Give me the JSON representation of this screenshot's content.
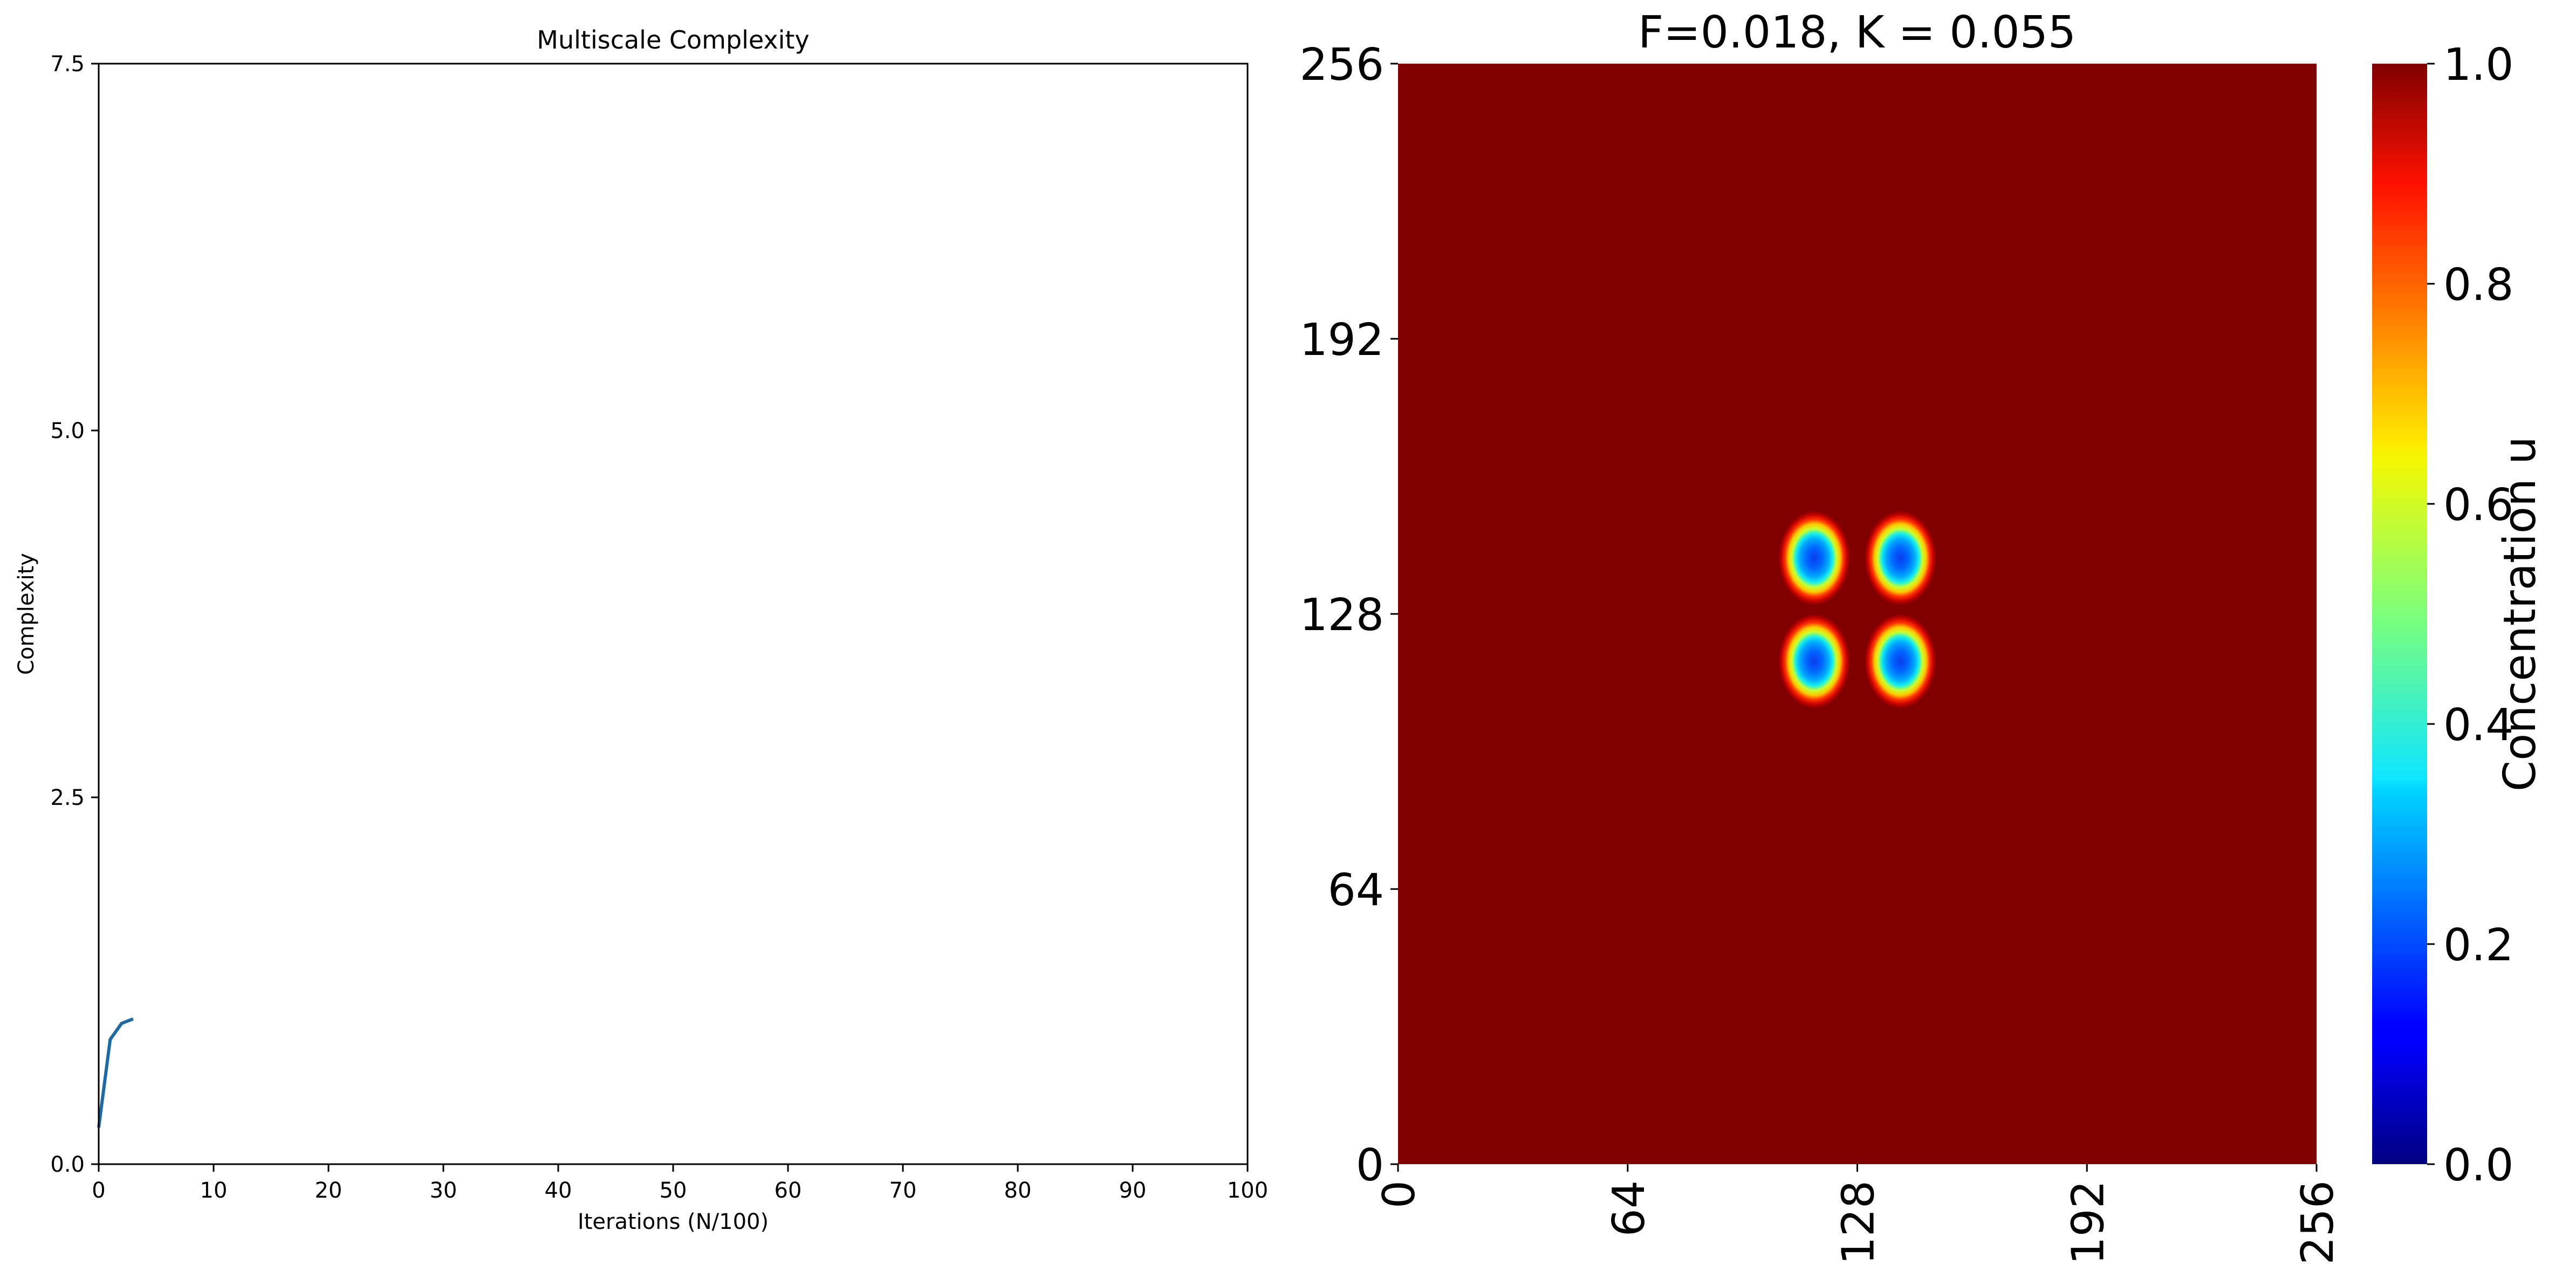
{
  "chart_data": [
    {
      "type": "line",
      "title": "Multiscale Complexity",
      "xlabel": "Iterations (N/100)",
      "ylabel": "Complexity",
      "xlim": [
        0,
        100
      ],
      "ylim": [
        0,
        7.5
      ],
      "xticks": [
        0,
        10,
        20,
        30,
        40,
        50,
        60,
        70,
        80,
        90,
        100
      ],
      "xtick_labels": [
        "0",
        "10",
        "20",
        "30",
        "40",
        "50",
        "60",
        "70",
        "80",
        "90",
        "100"
      ],
      "yticks": [
        0,
        2.5,
        5.0,
        7.5
      ],
      "ytick_labels": [
        "0.0",
        "2.5",
        "5.0",
        "7.5"
      ],
      "grid": false,
      "series": [
        {
          "color": "#1f6aa5",
          "x": [
            0,
            1,
            2,
            3
          ],
          "y": [
            0.25,
            0.85,
            0.96,
            0.99
          ]
        }
      ]
    },
    {
      "type": "heatmap",
      "title": "F=0.018, K = 0.055",
      "xlim": [
        0,
        256
      ],
      "ylim": [
        0,
        256
      ],
      "xticks": [
        0,
        64,
        128,
        192,
        256
      ],
      "xtick_labels": [
        "0",
        "64",
        "128",
        "192",
        "256"
      ],
      "yticks": [
        0,
        64,
        128,
        192,
        256
      ],
      "ytick_labels": [
        "0",
        "64",
        "128",
        "192",
        "256"
      ],
      "background_value": 1.0,
      "spots": [
        {
          "x": 116,
          "y": 141,
          "value": 0.3
        },
        {
          "x": 140,
          "y": 141,
          "value": 0.3
        },
        {
          "x": 116,
          "y": 117,
          "value": 0.3
        },
        {
          "x": 140,
          "y": 117,
          "value": 0.3
        }
      ],
      "colorbar": {
        "label": "Concentration u",
        "colormap": "jet",
        "range": [
          0,
          1
        ],
        "ticks": [
          0.0,
          0.2,
          0.4,
          0.6,
          0.8,
          1.0
        ],
        "tick_labels": [
          "0.0",
          "0.2",
          "0.4",
          "0.6",
          "0.8",
          "1.0"
        ]
      }
    }
  ]
}
